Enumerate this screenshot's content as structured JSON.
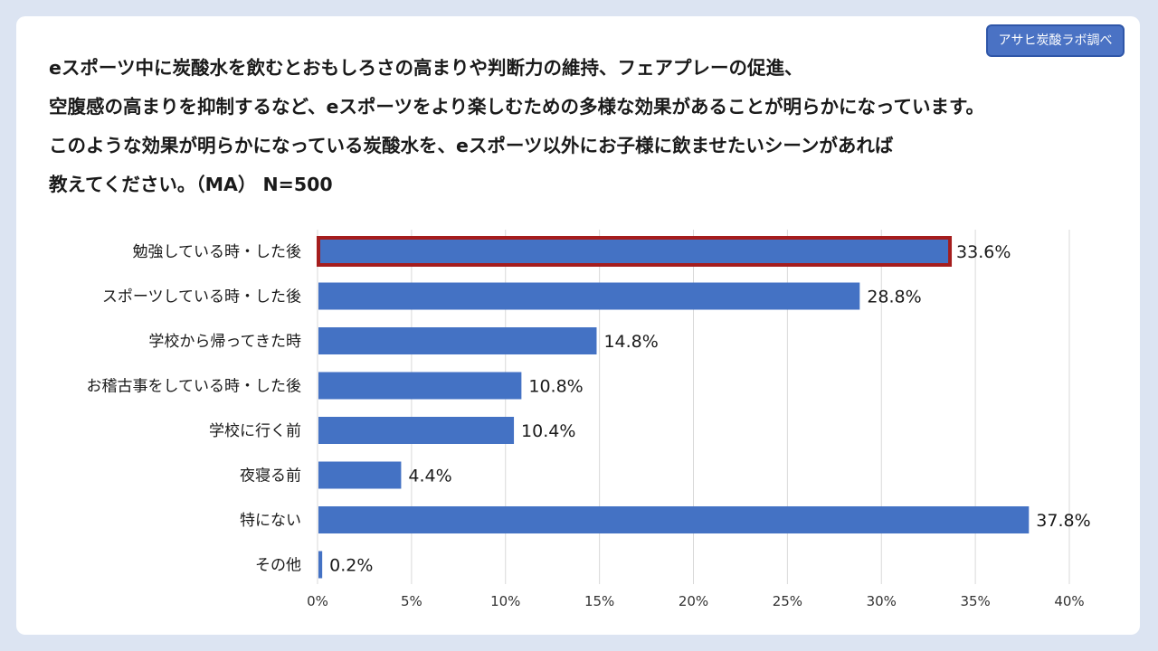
{
  "badge": "アサヒ炭酸ラボ調べ",
  "question_lines": [
    "eスポーツ中に炭酸水を飲むとおもしろさの高まりや判断力の維持、フェアプレーの促進、",
    "空腹感の高まりを抑制するなど、eスポーツをより楽しむための多様な効果があることが明らかになっています。",
    "このような効果が明らかになっている炭酸水を、eスポーツ以外にお子様に飲ませたいシーンがあれば",
    "教えてください。（MA） N=500"
  ],
  "colors": {
    "bar": "#4472c4",
    "highlight_border": "#a51d1d",
    "grid": "#d9d9d9",
    "badge": "#4a72c4"
  },
  "chart_data": {
    "type": "bar",
    "orientation": "horizontal",
    "categories": [
      "勉強している時・した後",
      "スポーツしている時・した後",
      "学校から帰ってきた時",
      "お稽古事をしている時・した後",
      "学校に行く前",
      "夜寝る前",
      "特にない",
      "その他"
    ],
    "values": [
      33.6,
      28.8,
      14.8,
      10.8,
      10.4,
      4.4,
      37.8,
      0.2
    ],
    "value_labels": [
      "33.6%",
      "28.8%",
      "14.8%",
      "10.8%",
      "10.4%",
      "4.4%",
      "37.8%",
      "0.2%"
    ],
    "highlight_index": 0,
    "xlim": [
      0,
      40
    ],
    "xticks": [
      0,
      5,
      10,
      15,
      20,
      25,
      30,
      35,
      40
    ],
    "xtick_labels": [
      "0%",
      "5%",
      "10%",
      "15%",
      "20%",
      "25%",
      "30%",
      "35%",
      "40%"
    ],
    "grid": true,
    "title": "",
    "xlabel": "",
    "ylabel": ""
  }
}
